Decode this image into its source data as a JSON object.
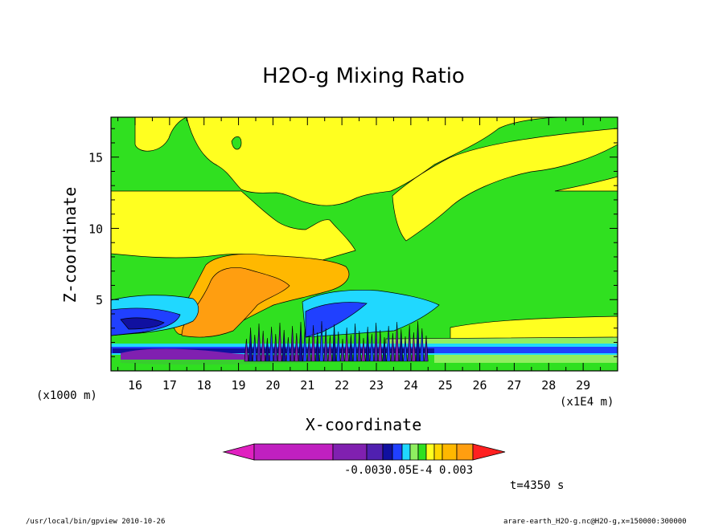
{
  "chart_data": {
    "type": "heatmap",
    "title": "H2O-g Mixing Ratio",
    "xlabel": "X-coordinate",
    "ylabel": "Z-coordinate",
    "x_unit_left": "(x1000 m)",
    "x_unit_right": "(x1E4 m)",
    "x_ticks": [
      "16",
      "17",
      "18",
      "19",
      "20",
      "21",
      "22",
      "23",
      "24",
      "25",
      "26",
      "27",
      "28",
      "29"
    ],
    "y_ticks": [
      "5",
      "10",
      "15"
    ],
    "xlim": [
      15.3,
      30.0
    ],
    "ylim": [
      0,
      17.8
    ],
    "colorbar_labels": [
      "-0.003",
      "0.0",
      "5E-4",
      "0.003"
    ],
    "colorbar_label_text": "-0.0030.05E-4  0.003",
    "colors": {
      "magenta": "#c020c0",
      "purple": "#8020b0",
      "violet": "#5020b0",
      "navy": "#1010a0",
      "blue": "#2040ff",
      "cyan": "#20d8ff",
      "lightgreen": "#90ee60",
      "green": "#30e020",
      "yellow": "#ffff20",
      "gold": "#ffd700",
      "lightorange": "#ffb800",
      "orange": "#ff9e10",
      "red": "#ff2020"
    }
  },
  "time_label": "t=4350 s",
  "footer_left": "/usr/local/bin/gpview  2010-10-26",
  "footer_right": "arare-earth_H2O-g.nc@H2O-g,x=150000:300000"
}
